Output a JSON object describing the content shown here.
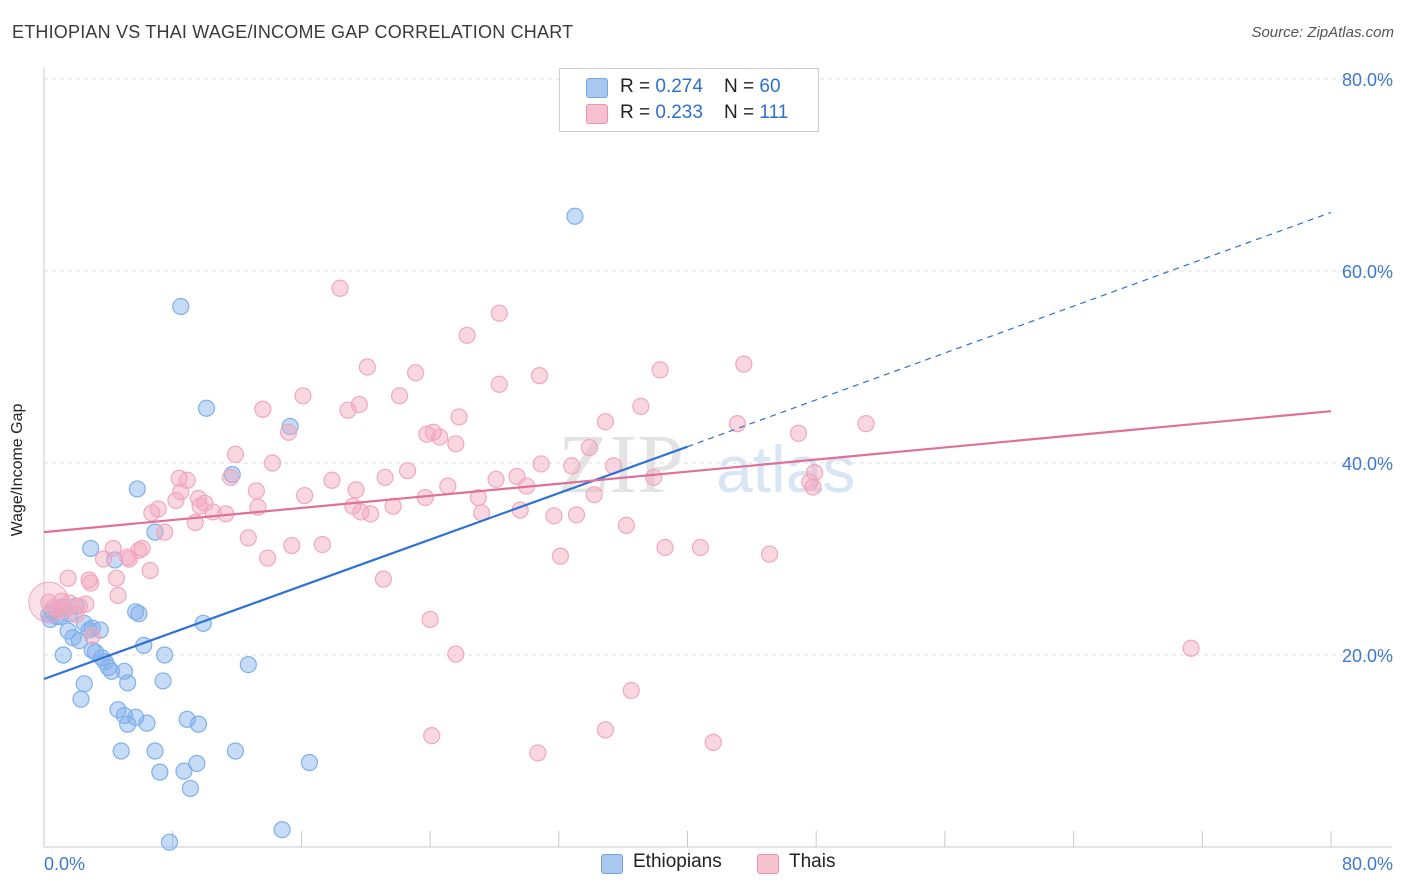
{
  "title": "ETHIOPIAN VS THAI WAGE/INCOME GAP CORRELATION CHART",
  "source": "Source: ZipAtlas.com",
  "watermark": {
    "part1": "ZIP",
    "part2": "atlas"
  },
  "stats": [
    {
      "r_label": "R = ",
      "r_value": "0.274",
      "n_label": "N = ",
      "n_value": "60",
      "color": "#a9c8f0",
      "border": "#7aa6e0"
    },
    {
      "r_label": "R = ",
      "r_value": "0.233",
      "n_label": "N = ",
      "n_value": "111",
      "color": "#f5c0cf",
      "border": "#e895ad"
    }
  ],
  "legend": [
    {
      "label": "Ethiopians",
      "color": "#a9c8f0",
      "border": "#7aa6e0"
    },
    {
      "label": "Thais",
      "color": "#f5c0cf",
      "border": "#e895ad"
    }
  ],
  "chart_data": {
    "type": "scatter",
    "title": "ETHIOPIAN VS THAI WAGE/INCOME GAP CORRELATION CHART",
    "xlabel": "",
    "ylabel": "Wage/Income Gap",
    "xlim": [
      0,
      80
    ],
    "ylim": [
      0,
      80
    ],
    "x_tick_labels": [
      "0.0%",
      "80.0%"
    ],
    "y_ticks": [
      20,
      40,
      60,
      80
    ],
    "y_tick_labels": [
      "20.0%",
      "40.0%",
      "60.0%",
      "80.0%"
    ],
    "grid": true,
    "legend_position": "bottom-center",
    "series": [
      {
        "name": "Ethiopians",
        "color": "#7fb0ea",
        "line_color": "#2d72d2",
        "r": 0.274,
        "n": 60,
        "trend": {
          "x0": 0,
          "y0": 17.5,
          "x1": 40,
          "y1": 41.7,
          "dashed_to_x": 80,
          "dashed_to_y": 66.1
        },
        "points": [
          [
            0.5,
            24.5
          ],
          [
            0.8,
            24
          ],
          [
            1,
            24
          ],
          [
            0.3,
            24.2
          ],
          [
            1.2,
            25
          ],
          [
            2,
            25.1
          ],
          [
            1.5,
            22.5
          ],
          [
            3,
            22.8
          ],
          [
            2.5,
            23.3
          ],
          [
            1.8,
            21.8
          ],
          [
            2.2,
            21.5
          ],
          [
            2.8,
            22.6
          ],
          [
            3.5,
            22.6
          ],
          [
            1.2,
            20
          ],
          [
            3,
            20.5
          ],
          [
            3.2,
            20.3
          ],
          [
            3.8,
            19.3
          ],
          [
            4,
            18.7
          ],
          [
            4.2,
            18.3
          ],
          [
            5,
            18.3
          ],
          [
            2.5,
            17
          ],
          [
            5.2,
            17.1
          ],
          [
            7.4,
            17.3
          ],
          [
            7.5,
            20
          ],
          [
            6.2,
            21
          ],
          [
            2.3,
            15.4
          ],
          [
            4.6,
            14.3
          ],
          [
            5,
            13.7
          ],
          [
            5.2,
            12.8
          ],
          [
            5.7,
            13.5
          ],
          [
            6.4,
            12.9
          ],
          [
            8.9,
            13.3
          ],
          [
            9.6,
            12.8
          ],
          [
            4.8,
            10
          ],
          [
            6.9,
            10
          ],
          [
            11.9,
            10
          ],
          [
            7.2,
            7.8
          ],
          [
            8.7,
            7.9
          ],
          [
            9.5,
            8.7
          ],
          [
            16.5,
            8.8
          ],
          [
            9.1,
            6.1
          ],
          [
            7.8,
            0.5
          ],
          [
            14.8,
            1.8
          ],
          [
            12.7,
            19
          ],
          [
            9.9,
            23.3
          ],
          [
            5.9,
            24.3
          ],
          [
            5.7,
            24.5
          ],
          [
            2.9,
            31.1
          ],
          [
            4.4,
            29.9
          ],
          [
            6.9,
            32.8
          ],
          [
            5.8,
            37.3
          ],
          [
            10.1,
            45.7
          ],
          [
            15.3,
            43.8
          ],
          [
            11.7,
            38.8
          ],
          [
            8.5,
            56.3
          ],
          [
            33,
            65.7
          ],
          [
            0.9,
            24.8
          ],
          [
            1.6,
            24.3
          ],
          [
            3.6,
            19.7
          ],
          [
            0.4,
            23.7
          ]
        ]
      },
      {
        "name": "Thais",
        "color": "#f2a7bd",
        "line_color": "#e0709a",
        "r": 0.233,
        "n": 111,
        "trend": {
          "x0": 0,
          "y0": 32.8,
          "x1": 80,
          "y1": 45.4
        },
        "points": [
          [
            0.3,
            25.5
          ],
          [
            0.6,
            25
          ],
          [
            0.9,
            24.7
          ],
          [
            1.3,
            24.7
          ],
          [
            1.6,
            25.4
          ],
          [
            2.2,
            25.1
          ],
          [
            2,
            24.2
          ],
          [
            1.1,
            25.6
          ],
          [
            2.6,
            25.3
          ],
          [
            3,
            22
          ],
          [
            1.5,
            28
          ],
          [
            2.8,
            27.8
          ],
          [
            2.9,
            27.5
          ],
          [
            3.7,
            30
          ],
          [
            4.6,
            26.2
          ],
          [
            4.5,
            28
          ],
          [
            5.2,
            30.2
          ],
          [
            5.3,
            30
          ],
          [
            6.1,
            31.1
          ],
          [
            5.9,
            30.9
          ],
          [
            4.3,
            31.1
          ],
          [
            6.6,
            28.8
          ],
          [
            7.5,
            32.8
          ],
          [
            7.1,
            35.2
          ],
          [
            6.7,
            34.8
          ],
          [
            8.2,
            36.1
          ],
          [
            9.4,
            33.8
          ],
          [
            9.7,
            35.5
          ],
          [
            10,
            35.8
          ],
          [
            10.5,
            34.9
          ],
          [
            8.5,
            37
          ],
          [
            8.4,
            38.4
          ],
          [
            8.9,
            38.2
          ],
          [
            9.6,
            36.3
          ],
          [
            11.3,
            34.7
          ],
          [
            11.6,
            38.5
          ],
          [
            11.9,
            40.9
          ],
          [
            12.7,
            32.2
          ],
          [
            13.2,
            37.1
          ],
          [
            13.3,
            35.4
          ],
          [
            13.9,
            30.1
          ],
          [
            14.2,
            40
          ],
          [
            15.4,
            31.4
          ],
          [
            16.2,
            36.6
          ],
          [
            17.3,
            31.5
          ],
          [
            17.9,
            38.2
          ],
          [
            19.2,
            35.5
          ],
          [
            19.7,
            34.9
          ],
          [
            19.4,
            37.2
          ],
          [
            20.3,
            34.7
          ],
          [
            21.2,
            38.5
          ],
          [
            21.7,
            35.5
          ],
          [
            21.1,
            27.9
          ],
          [
            22.6,
            39.2
          ],
          [
            23.8,
            43
          ],
          [
            24.2,
            43.2
          ],
          [
            24.6,
            42.7
          ],
          [
            23.7,
            36.4
          ],
          [
            25.1,
            37.6
          ],
          [
            25.6,
            42
          ],
          [
            27.2,
            34.8
          ],
          [
            27,
            36.4
          ],
          [
            28.1,
            38.3
          ],
          [
            29.4,
            38.6
          ],
          [
            30,
            37.6
          ],
          [
            30.9,
            39.9
          ],
          [
            29.6,
            35.1
          ],
          [
            31.7,
            34.5
          ],
          [
            32.1,
            30.3
          ],
          [
            33.1,
            34.6
          ],
          [
            32.8,
            39.7
          ],
          [
            33.9,
            41.6
          ],
          [
            34.2,
            36.7
          ],
          [
            34.9,
            44.3
          ],
          [
            35.4,
            39.7
          ],
          [
            37.1,
            45.9
          ],
          [
            38.6,
            31.2
          ],
          [
            40.8,
            31.2
          ],
          [
            43.1,
            44.1
          ],
          [
            47.6,
            38
          ],
          [
            47.8,
            37.5
          ],
          [
            47.9,
            39
          ],
          [
            46.9,
            43.1
          ],
          [
            45.1,
            30.5
          ],
          [
            43.5,
            50.3
          ],
          [
            38.3,
            49.7
          ],
          [
            30.8,
            49.1
          ],
          [
            28.3,
            48.2
          ],
          [
            23.1,
            49.4
          ],
          [
            20.1,
            50
          ],
          [
            22.1,
            47
          ],
          [
            18.9,
            45.5
          ],
          [
            16.1,
            47
          ],
          [
            15.2,
            43.2
          ],
          [
            13.6,
            45.6
          ],
          [
            18.4,
            58.2
          ],
          [
            26.3,
            53.3
          ],
          [
            28.3,
            55.6
          ],
          [
            36.2,
            33.5
          ],
          [
            37.9,
            38.5
          ],
          [
            24,
            23.7
          ],
          [
            25.6,
            20.1
          ],
          [
            36.5,
            16.3
          ],
          [
            34.9,
            12.2
          ],
          [
            41.6,
            10.9
          ],
          [
            24.1,
            11.6
          ],
          [
            30.7,
            9.8
          ],
          [
            71.3,
            20.7
          ],
          [
            51.1,
            44.1
          ],
          [
            25.8,
            44.8
          ],
          [
            19.6,
            46.1
          ]
        ]
      }
    ]
  }
}
